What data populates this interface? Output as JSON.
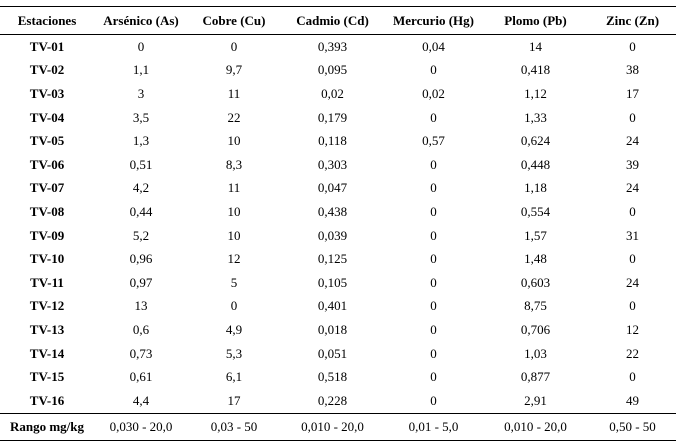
{
  "table": {
    "headers": [
      "Estaciones",
      "Arsénico (As)",
      "Cobre (Cu)",
      "Cadmio (Cd)",
      "Mercurio (Hg)",
      "Plomo (Pb)",
      "Zinc (Zn)"
    ],
    "rows": [
      [
        "TV-01",
        "0",
        "0",
        "0,393",
        "0,04",
        "14",
        "0"
      ],
      [
        "TV-02",
        "1,1",
        "9,7",
        "0,095",
        "0",
        "0,418",
        "38"
      ],
      [
        "TV-03",
        "3",
        "11",
        "0,02",
        "0,02",
        "1,12",
        "17"
      ],
      [
        "TV-04",
        "3,5",
        "22",
        "0,179",
        "0",
        "1,33",
        "0"
      ],
      [
        "TV-05",
        "1,3",
        "10",
        "0,118",
        "0,57",
        "0,624",
        "24"
      ],
      [
        "TV-06",
        "0,51",
        "8,3",
        "0,303",
        "0",
        "0,448",
        "39"
      ],
      [
        "TV-07",
        "4,2",
        "11",
        "0,047",
        "0",
        "1,18",
        "24"
      ],
      [
        "TV-08",
        "0,44",
        "10",
        "0,438",
        "0",
        "0,554",
        "0"
      ],
      [
        "TV-09",
        "5,2",
        "10",
        "0,039",
        "0",
        "1,57",
        "31"
      ],
      [
        "TV-10",
        "0,96",
        "12",
        "0,125",
        "0",
        "1,48",
        "0"
      ],
      [
        "TV-11",
        "0,97",
        "5",
        "0,105",
        "0",
        "0,603",
        "24"
      ],
      [
        "TV-12",
        "13",
        "0",
        "0,401",
        "0",
        "8,75",
        "0"
      ],
      [
        "TV-13",
        "0,6",
        "4,9",
        "0,018",
        "0",
        "0,706",
        "12"
      ],
      [
        "TV-14",
        "0,73",
        "5,3",
        "0,051",
        "0",
        "1,03",
        "22"
      ],
      [
        "TV-15",
        "0,61",
        "6,1",
        "0,518",
        "0",
        "0,877",
        "0"
      ],
      [
        "TV-16",
        "4,4",
        "17",
        "0,228",
        "0",
        "2,91",
        "49"
      ]
    ],
    "footer": [
      "Rango mg/kg",
      "0,030 - 20,0",
      "0,03 - 50",
      "0,010 - 20,0",
      "0,01 - 5,0",
      "0,010 - 20,0",
      "0,50 - 50"
    ]
  }
}
